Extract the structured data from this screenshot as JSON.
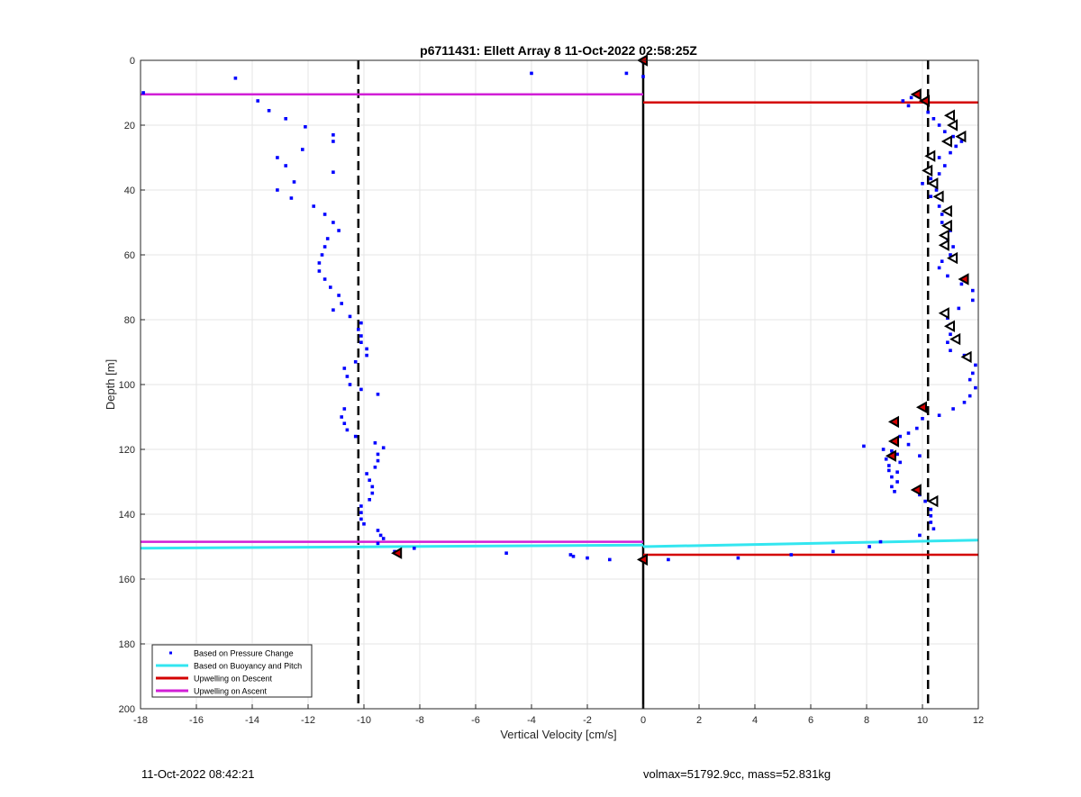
{
  "footer": {
    "timestamp": "11-Oct-2022 08:42:21",
    "summary": "volmax=51792.9cc, mass=52.831kg"
  },
  "chart_data": {
    "type": "scatter",
    "title": "p6711431: Ellett Array 8 11-Oct-2022 02:58:25Z",
    "xlabel": "Vertical Velocity [cm/s]",
    "ylabel": "Depth [m]",
    "xlim": [
      -18,
      12
    ],
    "ylim": [
      0,
      200
    ],
    "y_reversed": true,
    "grid": true,
    "x_ticks": [
      -18,
      -16,
      -14,
      -12,
      -10,
      -8,
      -6,
      -4,
      -2,
      0,
      2,
      4,
      6,
      8,
      10,
      12
    ],
    "y_ticks": [
      0,
      20,
      40,
      60,
      80,
      100,
      120,
      140,
      160,
      180,
      200
    ],
    "legend_position": "bottom-left",
    "legend": [
      "Based on Pressure Change",
      "Based on Buoyancy and Pitch",
      "Upwelling on Descent",
      "Upwelling on Ascent"
    ],
    "colors": {
      "pressure": "#0000ff",
      "buoyancy": "#33e6f0",
      "descent": "#d40000",
      "ascent": "#d11fd6",
      "axes": "#262626",
      "grid": "#e6e6e6"
    },
    "series": [
      {
        "name": "Based on Pressure Change",
        "points": [
          [
            -17.9,
            10
          ],
          [
            -14.6,
            5.5
          ],
          [
            -13.8,
            12.5
          ],
          [
            -13.4,
            15.5
          ],
          [
            -12.8,
            18
          ],
          [
            -12.1,
            20.5
          ],
          [
            -11.1,
            23
          ],
          [
            -11.1,
            25
          ],
          [
            -12.2,
            27.5
          ],
          [
            -13.1,
            30
          ],
          [
            -12.8,
            32.5
          ],
          [
            -11.1,
            34.5
          ],
          [
            -12.5,
            37.5
          ],
          [
            -13.1,
            40
          ],
          [
            -12.6,
            42.5
          ],
          [
            -11.8,
            45
          ],
          [
            -11.4,
            47.5
          ],
          [
            -11.1,
            50
          ],
          [
            -10.9,
            52.5
          ],
          [
            -11.3,
            55
          ],
          [
            -11.4,
            57.5
          ],
          [
            -11.5,
            60
          ],
          [
            -11.6,
            62.5
          ],
          [
            -11.6,
            65
          ],
          [
            -11.4,
            67.5
          ],
          [
            -11.2,
            70
          ],
          [
            -10.9,
            72.5
          ],
          [
            -10.8,
            75
          ],
          [
            -11.1,
            77
          ],
          [
            -10.5,
            79
          ],
          [
            -10.1,
            81
          ],
          [
            -10.2,
            83
          ],
          [
            -10.1,
            85
          ],
          [
            -10.1,
            87
          ],
          [
            -9.9,
            89
          ],
          [
            -9.9,
            91
          ],
          [
            -10.3,
            93
          ],
          [
            -10.7,
            95
          ],
          [
            -10.6,
            97.5
          ],
          [
            -10.5,
            100
          ],
          [
            -10.1,
            101.5
          ],
          [
            -9.5,
            103
          ],
          [
            -10.7,
            107.5
          ],
          [
            -10.8,
            110
          ],
          [
            -10.7,
            112
          ],
          [
            -10.6,
            114
          ],
          [
            -10.3,
            116
          ],
          [
            -9.6,
            118
          ],
          [
            -9.3,
            119.5
          ],
          [
            -9.5,
            121.5
          ],
          [
            -9.5,
            123.5
          ],
          [
            -9.6,
            125.5
          ],
          [
            -9.9,
            127.5
          ],
          [
            -9.8,
            129.5
          ],
          [
            -9.7,
            131.5
          ],
          [
            -9.7,
            133.5
          ],
          [
            -9.8,
            135.5
          ],
          [
            -10.1,
            137.5
          ],
          [
            -10.1,
            139.5
          ],
          [
            -10.1,
            141.5
          ],
          [
            -10.0,
            143
          ],
          [
            -9.5,
            145
          ],
          [
            -9.4,
            146.5
          ],
          [
            -9.3,
            147.5
          ],
          [
            -9.5,
            149
          ],
          [
            -8.2,
            150.5
          ],
          [
            -8.9,
            151.5
          ],
          [
            -4.9,
            152
          ],
          [
            -2.6,
            152.5
          ],
          [
            -2.5,
            153
          ],
          [
            -2.0,
            153.5
          ],
          [
            -1.2,
            154
          ],
          [
            -4.0,
            4
          ],
          [
            -0.6,
            4
          ],
          [
            0,
            0.5
          ],
          [
            0,
            5
          ],
          [
            0,
            154
          ],
          [
            0.9,
            154
          ],
          [
            3.4,
            153.5
          ],
          [
            5.3,
            152.5
          ],
          [
            6.8,
            151.5
          ],
          [
            8.1,
            150
          ],
          [
            8.5,
            148.5
          ],
          [
            9.9,
            146.5
          ],
          [
            10.4,
            144.5
          ],
          [
            10.3,
            142.5
          ],
          [
            10.3,
            140.5
          ],
          [
            10.3,
            138.5
          ],
          [
            10.1,
            136
          ],
          [
            9.9,
            134
          ],
          [
            9.0,
            133
          ],
          [
            8.9,
            131.5
          ],
          [
            9.1,
            130
          ],
          [
            8.9,
            128.5
          ],
          [
            9.1,
            127
          ],
          [
            8.8,
            126.5
          ],
          [
            8.8,
            125
          ],
          [
            9.2,
            124
          ],
          [
            8.7,
            123
          ],
          [
            9.9,
            122
          ],
          [
            9.1,
            121.5
          ],
          [
            8.9,
            120.5
          ],
          [
            8.6,
            120
          ],
          [
            7.9,
            119
          ],
          [
            9.5,
            118.5
          ],
          [
            9.2,
            116
          ],
          [
            9.5,
            115
          ],
          [
            9.8,
            113.5
          ],
          [
            10.0,
            110.5
          ],
          [
            10.6,
            109.5
          ],
          [
            11.1,
            107.5
          ],
          [
            11.5,
            105.5
          ],
          [
            11.7,
            103.5
          ],
          [
            11.9,
            101
          ],
          [
            11.7,
            98.5
          ],
          [
            11.8,
            96.5
          ],
          [
            11.9,
            94
          ],
          [
            11.5,
            91
          ],
          [
            11.0,
            89.5
          ],
          [
            10.9,
            87
          ],
          [
            11.0,
            84.5
          ],
          [
            11.0,
            81.5
          ],
          [
            10.9,
            79.5
          ],
          [
            11.3,
            76.5
          ],
          [
            11.8,
            74
          ],
          [
            11.8,
            71
          ],
          [
            11.4,
            69
          ],
          [
            10.9,
            66.5
          ],
          [
            10.6,
            64
          ],
          [
            10.7,
            62
          ],
          [
            11.0,
            60
          ],
          [
            11.1,
            57.5
          ],
          [
            10.9,
            55
          ],
          [
            11.0,
            52.5
          ],
          [
            10.7,
            50
          ],
          [
            10.7,
            47.5
          ],
          [
            10.6,
            45
          ],
          [
            10.3,
            42
          ],
          [
            10.5,
            40
          ],
          [
            10.0,
            38
          ],
          [
            10.3,
            36.5
          ],
          [
            10.6,
            35
          ],
          [
            10.8,
            32.5
          ],
          [
            10.6,
            30
          ],
          [
            11.0,
            28.5
          ],
          [
            11.2,
            26.5
          ],
          [
            11.4,
            25
          ],
          [
            11.1,
            23.5
          ],
          [
            10.8,
            22
          ],
          [
            10.6,
            20
          ],
          [
            10.4,
            18
          ],
          [
            10.2,
            16
          ],
          [
            9.5,
            14
          ],
          [
            9.3,
            12.5
          ],
          [
            9.6,
            11.5
          ],
          [
            9.8,
            10.5
          ]
        ]
      },
      {
        "name": "Based on Buoyancy and Pitch",
        "lines": [
          [
            [
              -18,
              150.5
            ],
            [
              0,
              149.5
            ]
          ],
          [
            [
              0,
              150
            ],
            [
              12,
              148
            ]
          ]
        ],
        "open_markers": [
          [
            11.0,
            17
          ],
          [
            11.1,
            20
          ],
          [
            11.4,
            23.5
          ],
          [
            10.9,
            25
          ],
          [
            10.3,
            29.5
          ],
          [
            10.2,
            34
          ],
          [
            10.4,
            38
          ],
          [
            10.6,
            42
          ],
          [
            10.9,
            46.5
          ],
          [
            10.9,
            51
          ],
          [
            10.8,
            54
          ],
          [
            10.8,
            57
          ],
          [
            11.1,
            61
          ],
          [
            10.8,
            78
          ],
          [
            11.0,
            82
          ],
          [
            11.2,
            86
          ],
          [
            11.6,
            91.5
          ],
          [
            10.4,
            136
          ]
        ],
        "filled_markers": [
          [
            0,
            0
          ],
          [
            9.8,
            10.5
          ],
          [
            10.1,
            12.5
          ],
          [
            11.5,
            67.5
          ],
          [
            10.0,
            107
          ],
          [
            9.0,
            111.5
          ],
          [
            9.0,
            117.5
          ],
          [
            8.9,
            122
          ],
          [
            9.8,
            132.5
          ],
          [
            -8.8,
            152
          ],
          [
            0,
            154
          ]
        ]
      },
      {
        "name": "Upwelling on Descent",
        "lines": [
          [
            [
              0,
              13
            ],
            [
              12,
              13
            ]
          ],
          [
            [
              0,
              152.5
            ],
            [
              12,
              152.5
            ]
          ]
        ]
      },
      {
        "name": "Upwelling on Ascent",
        "lines": [
          [
            [
              -18,
              10.5
            ],
            [
              0,
              10.5
            ]
          ],
          [
            [
              -18,
              148.5
            ],
            [
              0,
              148.5
            ]
          ]
        ]
      }
    ],
    "reference_lines": {
      "dashed_vertical_x": [
        -10.2,
        10.2
      ],
      "solid_vertical_x": [
        0
      ]
    }
  }
}
